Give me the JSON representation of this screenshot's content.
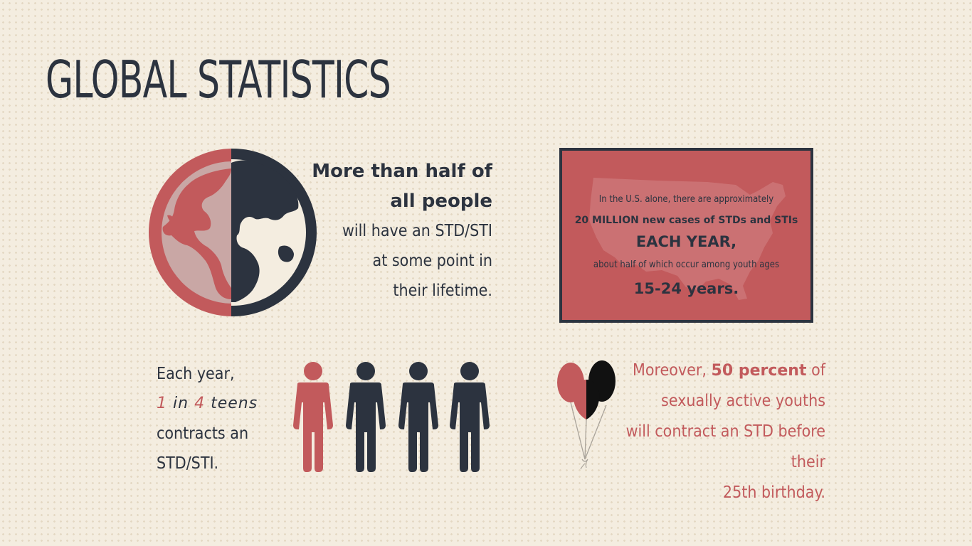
{
  "title": "GLOBAL STATISTICS",
  "colors": {
    "accent_red": "#c25a5c",
    "dark": "#2c333f",
    "background": "#f4ede0"
  },
  "globe_stat": {
    "icon": "globe-icon",
    "line1": "More than half of",
    "line2": "all people",
    "line3": "will have an STD/STI",
    "line4": "at some point in",
    "line5": "their lifetime."
  },
  "us_stat": {
    "icon": "us-map-icon",
    "line1": "In the U.S. alone, there are approximately",
    "line2": "20 MILLION new cases of STDs and STIs",
    "line3": "EACH YEAR,",
    "line4": "about half of which occur among youth ages",
    "line5": "15-24 years."
  },
  "teen_stat": {
    "icon": "person-icon",
    "line1": "Each year,",
    "num1": "1",
    "word_in": "in",
    "num2": "4",
    "word_teens": "teens",
    "line3": "contracts an",
    "line4": "STD/STI."
  },
  "youth_stat": {
    "icon": "balloons-icon",
    "pre": "Moreover,",
    "bold": "50 percent",
    "post": "of",
    "line2": "sexually active youths",
    "line3": "will contract an STD before their",
    "line4": "25th birthday."
  }
}
